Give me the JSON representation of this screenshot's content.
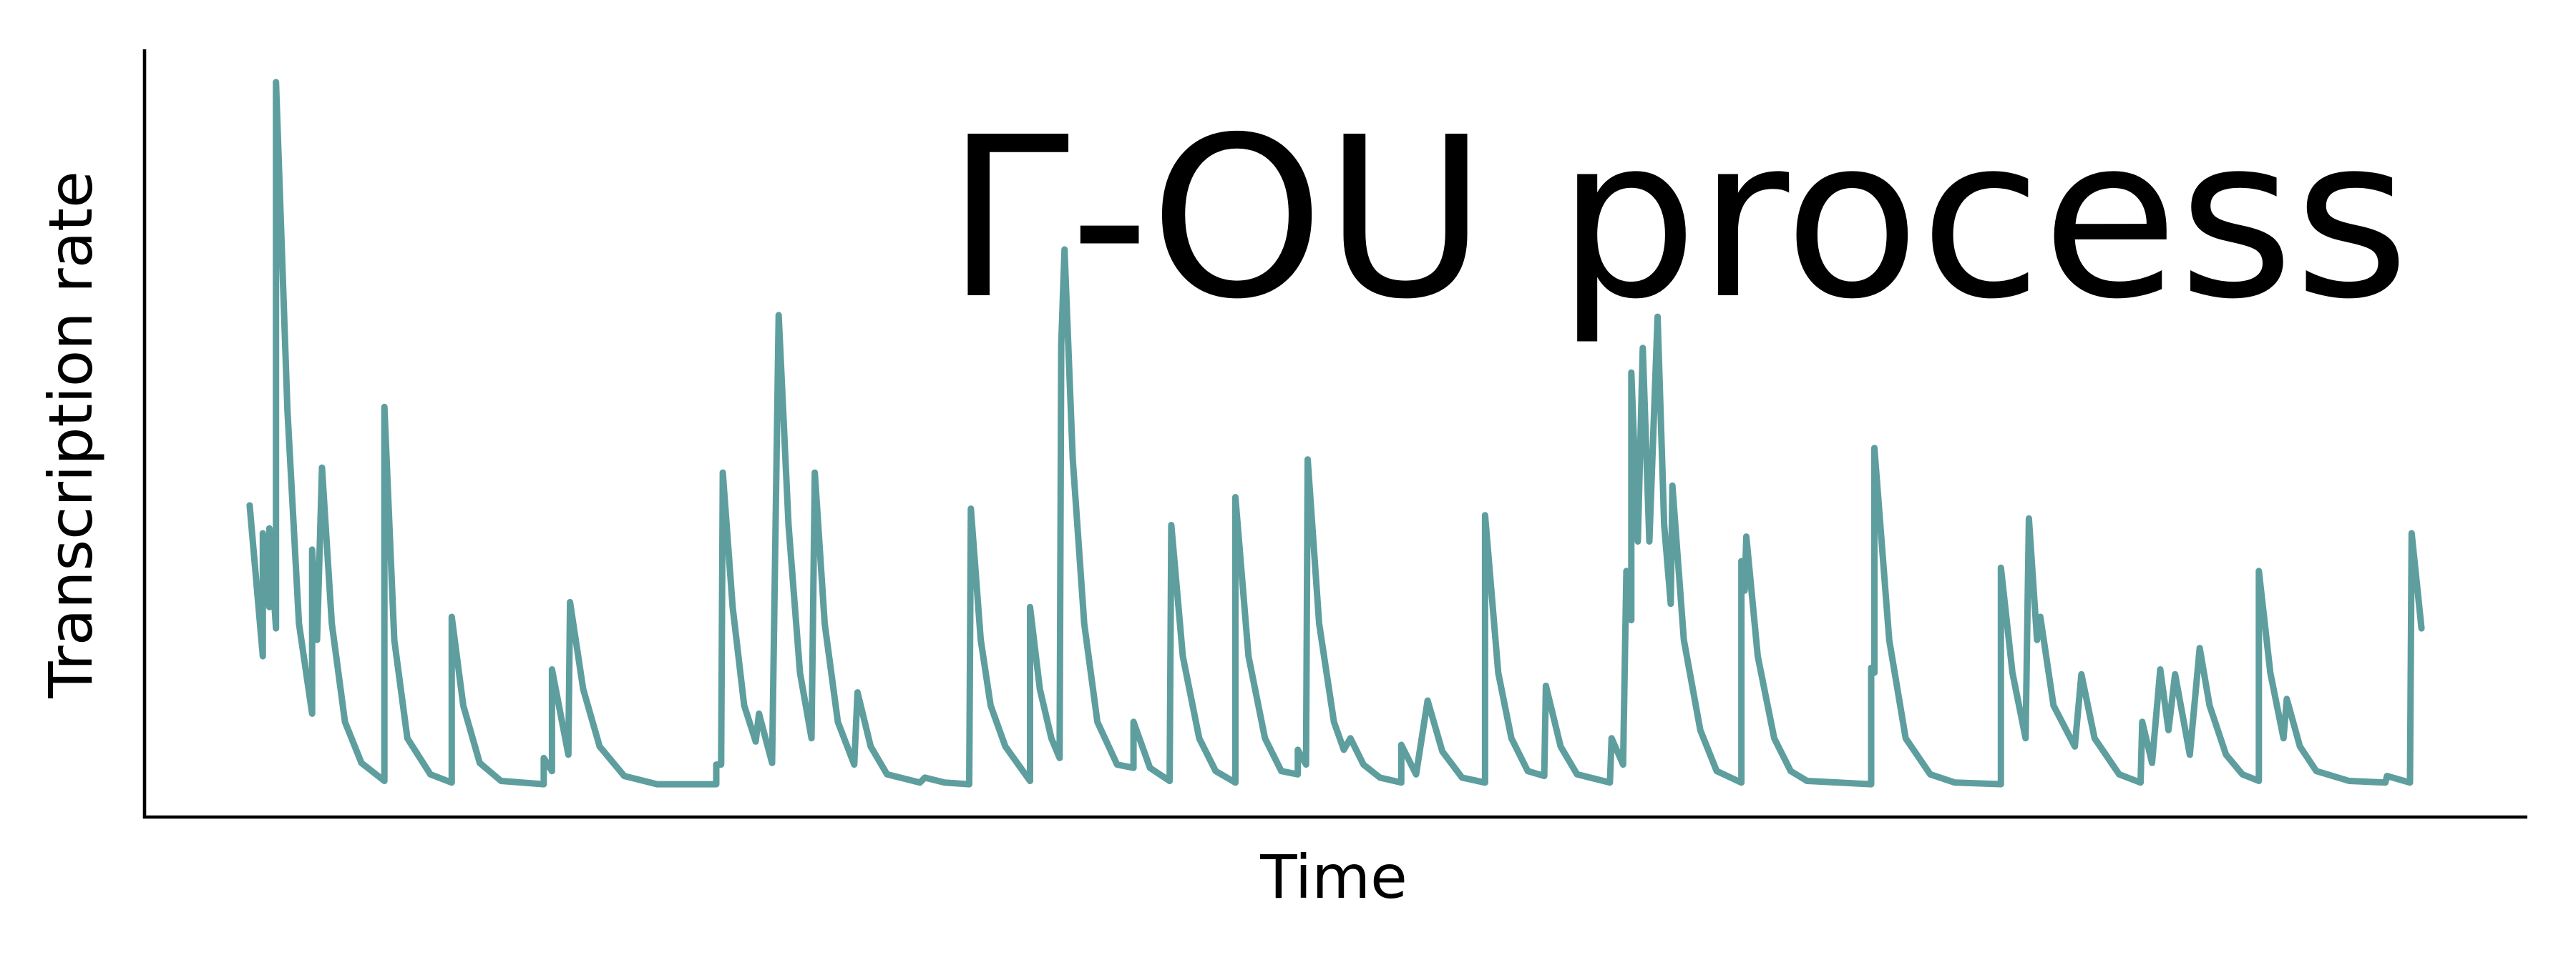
{
  "chart_data": {
    "type": "line",
    "annotation": "Γ-OU process",
    "xlabel": "Time",
    "ylabel": "Transcription rate",
    "color": "#5f9e9e",
    "xlim": [
      0,
      1450
    ],
    "ylim": [
      0,
      468
    ],
    "x": [
      64,
      72,
      72,
      76,
      76,
      80,
      80,
      87,
      94,
      102,
      102,
      105,
      108,
      114,
      122,
      132,
      146,
      146,
      152,
      160,
      174,
      187,
      187,
      194,
      204,
      217,
      243,
      243,
      248,
      248,
      258,
      259,
      267,
      277,
      292,
      312,
      348,
      348,
      351,
      352,
      358,
      365,
      372,
      374,
      382,
      386,
      392,
      399,
      406,
      408,
      414,
      422,
      432,
      434,
      442,
      452,
      472,
      475,
      487,
      502,
      503,
      509,
      515,
      524,
      539,
      539,
      545,
      552,
      557,
      558,
      560,
      565,
      572,
      580,
      592,
      602,
      602,
      612,
      624,
      625,
      632,
      642,
      652,
      664,
      664,
      672,
      682,
      692,
      702,
      702,
      707,
      708,
      715,
      724,
      730,
      734,
      742,
      752,
      765,
      765,
      774,
      781,
      790,
      802,
      816,
      816,
      824,
      832,
      842,
      852,
      853,
      862,
      872,
      892,
      893,
      900,
      902,
      905,
      905,
      909,
      912,
      916,
      921,
      925,
      929,
      930,
      937,
      947,
      957,
      972,
      972,
      974,
      975,
      982,
      992,
      1002,
      1012,
      1051,
      1051,
      1053,
      1053,
      1062,
      1072,
      1087,
      1102,
      1130,
      1130,
      1137,
      1145,
      1147,
      1152,
      1154,
      1162,
      1175,
      1179,
      1187,
      1202,
      1215,
      1216,
      1222,
      1227,
      1232,
      1236,
      1245,
      1251,
      1257,
      1267,
      1277,
      1287,
      1287,
      1294,
      1302,
      1304,
      1312,
      1322,
      1342,
      1364,
      1365,
      1379,
      1380,
      1386
    ],
    "values": [
      190,
      98,
      173,
      128,
      176,
      115,
      448,
      248,
      118,
      63,
      163,
      108,
      213,
      118,
      58,
      33,
      22,
      250,
      108,
      48,
      26,
      21,
      122,
      68,
      33,
      22,
      20,
      36,
      28,
      90,
      38,
      131,
      78,
      43,
      25,
      20,
      20,
      32,
      32,
      210,
      128,
      68,
      46,
      63,
      33,
      306,
      178,
      88,
      48,
      210,
      118,
      58,
      32,
      76,
      43,
      26,
      21,
      24,
      21,
      20,
      188,
      108,
      68,
      43,
      22,
      128,
      78,
      48,
      36,
      288,
      346,
      218,
      118,
      58,
      32,
      30,
      58,
      30,
      22,
      178,
      98,
      48,
      28,
      21,
      195,
      98,
      48,
      28,
      26,
      41,
      32,
      218,
      118,
      58,
      41,
      48,
      32,
      24,
      21,
      44,
      26,
      71,
      40,
      24,
      21,
      184,
      88,
      48,
      28,
      25,
      80,
      43,
      26,
      21,
      48,
      32,
      150,
      120,
      271,
      168,
      286,
      168,
      305,
      178,
      130,
      202,
      108,
      53,
      28,
      21,
      156,
      138,
      171,
      98,
      48,
      28,
      22,
      20,
      91,
      88,
      225,
      108,
      48,
      26,
      21,
      20,
      152,
      88,
      48,
      182,
      108,
      122,
      68,
      43,
      87,
      48,
      26,
      21,
      58,
      33,
      90,
      53,
      87,
      38,
      103,
      68,
      38,
      26,
      22,
      150,
      88,
      48,
      72,
      43,
      28,
      22,
      21,
      25,
      21,
      173,
      115
    ]
  }
}
